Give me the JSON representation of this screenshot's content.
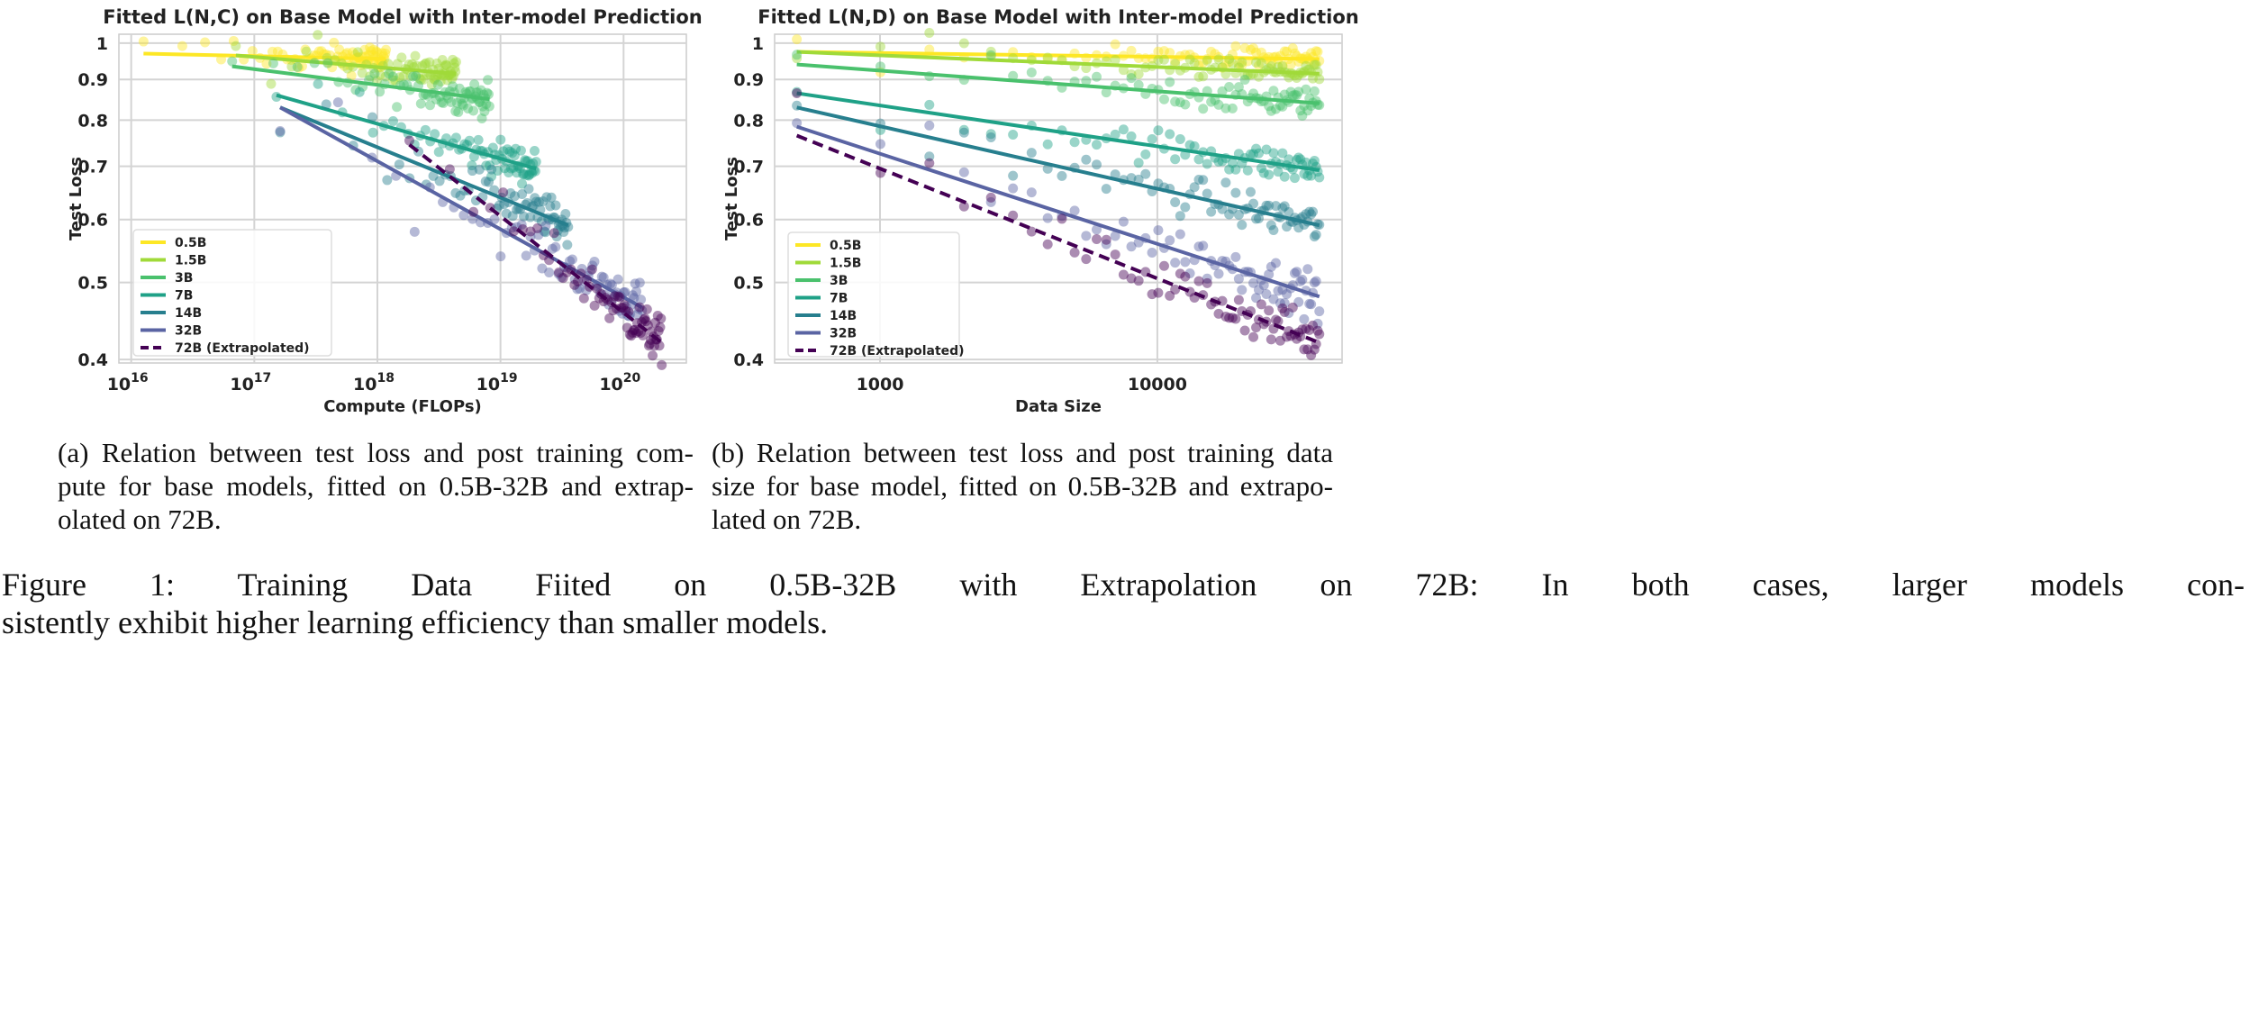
{
  "chart_data": [
    {
      "type": "scatter",
      "title": "Fitted L(N,C) on Base Model with Inter-model Prediction",
      "xlabel": "Compute (FLOPs)",
      "ylabel": "Test Loss",
      "xscale": "log",
      "yscale": "log",
      "xlim_log10": [
        15.9,
        20.51
      ],
      "ylim": [
        0.396,
        1.026
      ],
      "xtick_exponents": [
        16,
        17,
        18,
        19,
        20
      ],
      "xtick_base": "10",
      "yticks": [
        0.4,
        0.5,
        0.6,
        0.7,
        0.8,
        0.9,
        1
      ],
      "ytick_labels": [
        "0.4",
        "0.5",
        "0.6",
        "0.7",
        "0.8",
        "0.9",
        "1"
      ],
      "grid": true,
      "legend_position": "lower-left",
      "series": [
        {
          "name": "0.5B",
          "color": "#fde725",
          "fit": {
            "x_log10": [
              16.1,
              18.07
            ],
            "loss": [
              0.97,
              0.955
            ]
          },
          "points": 76,
          "noise": 0.012,
          "dashed": false
        },
        {
          "name": "1.5B",
          "color": "#a0da39",
          "fit": {
            "x_log10": [
              16.85,
              18.64
            ],
            "loss": [
              0.965,
              0.915
            ]
          },
          "points": 76,
          "noise": 0.012,
          "dashed": false
        },
        {
          "name": "3B",
          "color": "#4ac16d",
          "fit": {
            "x_log10": [
              16.82,
              18.91
            ],
            "loss": [
              0.935,
              0.85
            ]
          },
          "points": 76,
          "noise": 0.014,
          "dashed": false
        },
        {
          "name": "7B",
          "color": "#1fa187",
          "fit": {
            "x_log10": [
              17.18,
              19.29
            ],
            "loss": [
              0.86,
              0.695
            ]
          },
          "points": 76,
          "noise": 0.016,
          "dashed": false
        },
        {
          "name": "14B",
          "color": "#277f8e",
          "fit": {
            "x_log10": [
              17.21,
              19.55
            ],
            "loss": [
              0.83,
              0.59
            ]
          },
          "points": 76,
          "noise": 0.018,
          "dashed": false
        },
        {
          "name": "32B",
          "color": "#5a64a3",
          "fit": {
            "x_log10": [
              17.21,
              20.15
            ],
            "loss": [
              0.83,
              0.465
            ]
          },
          "points": 76,
          "noise": 0.02,
          "dashed": false
        },
        {
          "name": "72B (Extrapolated)",
          "color": "#440154",
          "fit": {
            "x_log10": [
              18.26,
              20.31
            ],
            "loss": [
              0.745,
              0.42
            ]
          },
          "points": 76,
          "noise": 0.02,
          "dashed": true
        }
      ]
    },
    {
      "type": "scatter",
      "title": "Fitted L(N,D) on Base Model with Inter-model Prediction",
      "xlabel": "Data Size",
      "ylabel": "Test Loss",
      "xscale": "log",
      "yscale": "log",
      "xlim_log10": [
        2.62,
        4.666
      ],
      "ylim": [
        0.396,
        1.026
      ],
      "xticks": [
        1000,
        10000
      ],
      "xtick_labels": [
        "1000",
        "10000"
      ],
      "yticks": [
        0.4,
        0.5,
        0.6,
        0.7,
        0.8,
        0.9,
        1
      ],
      "ytick_labels": [
        "0.4",
        "0.5",
        "0.6",
        "0.7",
        "0.8",
        "0.9",
        "1"
      ],
      "grid": true,
      "legend_position": "lower-left",
      "series": [
        {
          "name": "0.5B",
          "color": "#fde725",
          "fit": {
            "x_log10": [
              2.7,
              4.584
            ],
            "loss": [
              0.975,
              0.955
            ]
          },
          "points": 76,
          "noise": 0.01,
          "dashed": false
        },
        {
          "name": "1.5B",
          "color": "#a0da39",
          "fit": {
            "x_log10": [
              2.7,
              4.584
            ],
            "loss": [
              0.975,
              0.915
            ]
          },
          "points": 76,
          "noise": 0.01,
          "dashed": false
        },
        {
          "name": "3B",
          "color": "#4ac16d",
          "fit": {
            "x_log10": [
              2.7,
              4.584
            ],
            "loss": [
              0.94,
              0.84
            ]
          },
          "points": 76,
          "noise": 0.013,
          "dashed": false
        },
        {
          "name": "7B",
          "color": "#1fa187",
          "fit": {
            "x_log10": [
              2.7,
              4.584
            ],
            "loss": [
              0.865,
              0.692
            ]
          },
          "points": 76,
          "noise": 0.015,
          "dashed": false
        },
        {
          "name": "14B",
          "color": "#277f8e",
          "fit": {
            "x_log10": [
              2.7,
              4.584
            ],
            "loss": [
              0.83,
              0.59
            ]
          },
          "points": 76,
          "noise": 0.017,
          "dashed": false
        },
        {
          "name": "32B",
          "color": "#5a64a3",
          "fit": {
            "x_log10": [
              2.7,
              4.584
            ],
            "loss": [
              0.785,
              0.48
            ]
          },
          "points": 76,
          "noise": 0.02,
          "dashed": false
        },
        {
          "name": "72B (Extrapolated)",
          "color": "#440154",
          "fit": {
            "x_log10": [
              2.7,
              4.584
            ],
            "loss": [
              0.765,
              0.42
            ]
          },
          "points": 76,
          "noise": 0.02,
          "dashed": true
        }
      ]
    }
  ],
  "captions": {
    "a": [
      "(a) Relation between test loss and post training com-",
      "pute for base models, fitted on 0.5B-32B and extrap-",
      "olated on 72B."
    ],
    "b": [
      "(b) Relation between test loss and post training data",
      "size for base model, fitted on 0.5B-32B and extrapo-",
      "lated on 72B."
    ],
    "figure": [
      "Figure 1: Training Data Fiited on 0.5B-32B with Extrapolation on 72B: In both cases, larger models con-",
      "sistently exhibit higher learning efficiency than smaller models."
    ]
  }
}
